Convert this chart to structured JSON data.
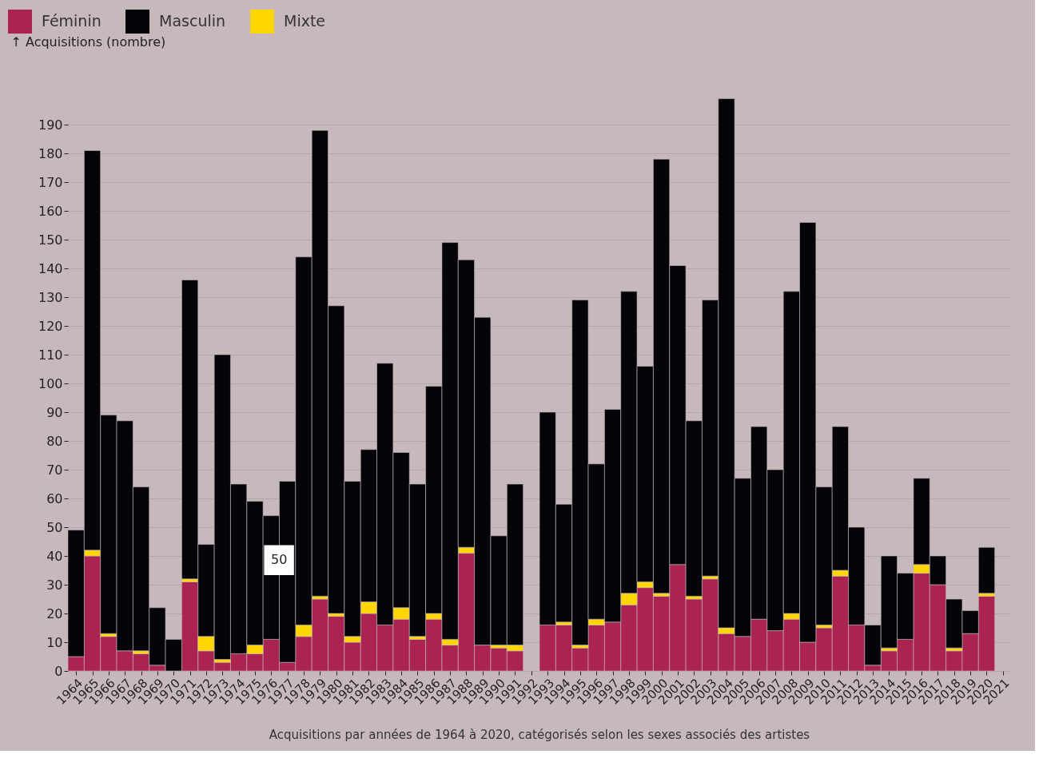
{
  "chart_data": {
    "type": "bar",
    "stacked": true,
    "ylabel": "↑ Acquisitions (nombre)",
    "x": [
      1964,
      1965,
      1966,
      1967,
      1968,
      1969,
      1970,
      1971,
      1972,
      1973,
      1974,
      1975,
      1976,
      1977,
      1978,
      1979,
      1980,
      1981,
      1982,
      1983,
      1984,
      1985,
      1986,
      1987,
      1988,
      1989,
      1990,
      1991,
      1992,
      1993,
      1994,
      1995,
      1996,
      1997,
      1998,
      1999,
      2000,
      2001,
      2002,
      2003,
      2004,
      2005,
      2006,
      2007,
      2008,
      2009,
      2010,
      2011,
      2012,
      2013,
      2014,
      2015,
      2016,
      2017,
      2018,
      2019,
      2020
    ],
    "series": [
      {
        "name": "Féminin",
        "color": "#ab2350",
        "values": [
          5,
          40,
          12,
          7,
          6,
          2,
          0,
          31,
          7,
          3,
          6,
          6,
          11,
          3,
          12,
          25,
          19,
          10,
          20,
          16,
          18,
          11,
          18,
          9,
          41,
          9,
          8,
          7,
          null,
          16,
          16,
          8,
          16,
          17,
          23,
          29,
          26,
          37,
          25,
          32,
          13,
          12,
          18,
          14,
          18,
          10,
          15,
          33,
          16,
          2,
          7,
          11,
          34,
          30,
          7,
          13,
          26
        ]
      },
      {
        "name": "Mixte",
        "color": "#ffd600",
        "values": [
          0,
          2,
          1,
          0,
          1,
          0,
          0,
          1,
          5,
          1,
          0,
          3,
          0,
          0,
          4,
          1,
          1,
          2,
          4,
          0,
          4,
          1,
          2,
          2,
          2,
          0,
          1,
          2,
          null,
          0,
          1,
          1,
          2,
          0,
          4,
          2,
          1,
          0,
          1,
          1,
          2,
          0,
          0,
          0,
          2,
          0,
          1,
          2,
          0,
          0,
          1,
          0,
          3,
          0,
          1,
          0,
          1
        ]
      },
      {
        "name": "Masculin",
        "color": "#040409",
        "values": [
          44,
          139,
          76,
          80,
          57,
          20,
          11,
          104,
          32,
          106,
          59,
          50,
          43,
          63,
          128,
          162,
          107,
          54,
          53,
          91,
          54,
          53,
          79,
          138,
          100,
          114,
          38,
          56,
          null,
          74,
          41,
          120,
          54,
          74,
          105,
          75,
          151,
          104,
          61,
          96,
          184,
          55,
          67,
          56,
          112,
          146,
          48,
          50,
          34,
          14,
          32,
          23,
          30,
          10,
          17,
          8,
          16
        ]
      }
    ],
    "xlim": [
      1963.5,
      2021.5
    ],
    "xticks": [
      1964,
      1965,
      1966,
      1967,
      1968,
      1969,
      1970,
      1971,
      1972,
      1973,
      1974,
      1975,
      1976,
      1977,
      1978,
      1979,
      1980,
      1981,
      1982,
      1983,
      1984,
      1985,
      1986,
      1987,
      1988,
      1989,
      1990,
      1991,
      1992,
      1993,
      1994,
      1995,
      1996,
      1997,
      1998,
      1999,
      2000,
      2001,
      2002,
      2003,
      2004,
      2005,
      2006,
      2007,
      2008,
      2009,
      2010,
      2011,
      2012,
      2013,
      2014,
      2015,
      2016,
      2017,
      2018,
      2019,
      2020,
      2021
    ],
    "ylim": [
      0,
      200
    ],
    "yticks": [
      0,
      10,
      20,
      30,
      40,
      50,
      60,
      70,
      80,
      90,
      100,
      110,
      120,
      130,
      140,
      150,
      160,
      170,
      180,
      190
    ],
    "grid": "y",
    "legend": "top left",
    "annotations": [
      {
        "text": "50",
        "x": 1975.5,
        "y": 33
      },
      "Acquisitions par années de 1964 à 2020, catégorisés selon les sexes associés des artistes"
    ]
  }
}
